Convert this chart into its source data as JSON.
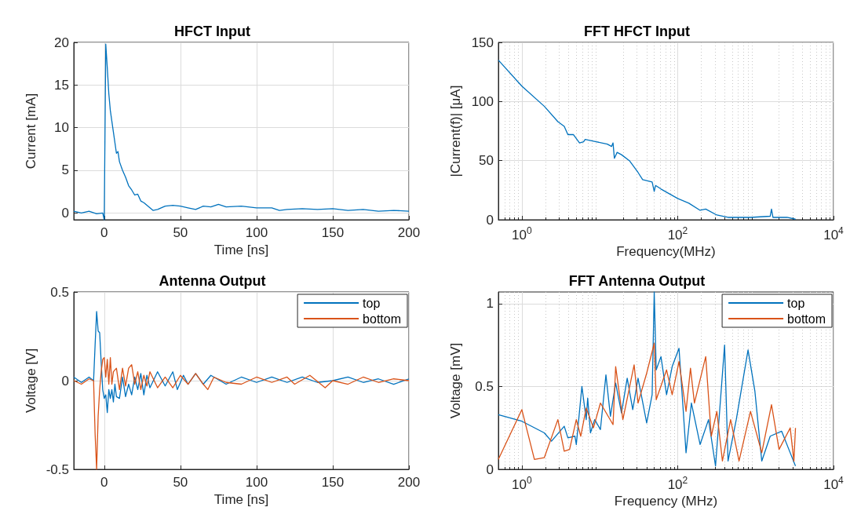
{
  "chart_data": [
    {
      "type": "line",
      "title": "HFCT Input",
      "xlabel": "Time [ns]",
      "ylabel": "Current [mA]",
      "xlim": [
        -20,
        200
      ],
      "xticks": [
        0,
        50,
        100,
        150,
        200
      ],
      "ylim": [
        -0.8,
        20
      ],
      "yticks": [
        0,
        5,
        10,
        15,
        20
      ],
      "grid": true,
      "legend": false,
      "series": [
        {
          "color": "#0072bd",
          "x": [
            -20,
            -15,
            -10,
            -5,
            -1,
            0,
            1,
            2,
            3,
            4,
            6,
            8,
            9,
            10,
            12,
            14,
            16,
            18,
            20,
            22,
            24,
            26,
            28,
            30,
            32,
            35,
            40,
            45,
            50,
            55,
            60,
            65,
            70,
            75,
            80,
            90,
            100,
            110,
            115,
            120,
            130,
            140,
            150,
            160,
            170,
            180,
            190,
            200
          ],
          "values": [
            0.2,
            0,
            0.2,
            -0.1,
            0,
            -0.8,
            19.8,
            17,
            14,
            12,
            9.5,
            7,
            7.2,
            6,
            5,
            4.2,
            3.2,
            2.7,
            2.1,
            2.2,
            1.4,
            1.2,
            0.9,
            0.6,
            0.3,
            0.4,
            0.8,
            0.9,
            0.8,
            0.6,
            0.4,
            0.8,
            0.7,
            1,
            0.7,
            0.8,
            0.6,
            0.6,
            0.3,
            0.4,
            0.5,
            0.4,
            0.5,
            0.3,
            0.4,
            0.2,
            0.3,
            0.2
          ]
        }
      ]
    },
    {
      "type": "line",
      "title": "FFT HFCT Input",
      "xlabel": "Frequency(MHz)",
      "ylabel": "|Current(f)| [μA]",
      "log": "x",
      "xlim": [
        0.5,
        10000
      ],
      "xticks": [
        {
          "value": 1,
          "label": "10$^{0}$"
        },
        {
          "value": 100,
          "label": "10$^{2}$"
        },
        {
          "value": 10000,
          "label": "10$^{4}$"
        }
      ],
      "ylim": [
        0,
        150
      ],
      "yticks": [
        0,
        50,
        100,
        150
      ],
      "grid": true,
      "legend": false,
      "series": [
        {
          "color": "#0072bd",
          "x": [
            0.5,
            1,
            1.94,
            2.9,
            3.5,
            3.9,
            4.6,
            5.5,
            6.2,
            6.5,
            9,
            12.5,
            14.2,
            14.8,
            15.4,
            16.7,
            19,
            24,
            31,
            35.5,
            47,
            50,
            52,
            61,
            78,
            100,
            139,
            194,
            229,
            318,
            443,
            860,
            1540,
            1600,
            1670,
            2530,
            3250
          ],
          "values": [
            135,
            113,
            96,
            83,
            79,
            72,
            72,
            65,
            66,
            68,
            66,
            64,
            62,
            65,
            52,
            57,
            55,
            50,
            40,
            34,
            32,
            24,
            29,
            26,
            22,
            18,
            14,
            8,
            9,
            4,
            2,
            2,
            3,
            9,
            2,
            2,
            0.5
          ]
        }
      ]
    },
    {
      "type": "line",
      "title": "Antenna Output",
      "xlabel": "Time [ns]",
      "ylabel": "Voltage [V]",
      "xlim": [
        -20,
        200
      ],
      "xticks": [
        0,
        50,
        100,
        150,
        200
      ],
      "ylim": [
        -0.5,
        0.5
      ],
      "yticks": [
        -0.5,
        0,
        0.5
      ],
      "grid": true,
      "legend": "top right",
      "series": [
        {
          "name": "top",
          "color": "#0072bd",
          "x": [
            -20,
            -15,
            -10,
            -7,
            -6,
            -5,
            -4,
            -3,
            -2,
            -1,
            0,
            1,
            2,
            3,
            4,
            5,
            6,
            7,
            8,
            10,
            12,
            14,
            16,
            18,
            20,
            22,
            24,
            26,
            28,
            30,
            35,
            40,
            45,
            48,
            52,
            55,
            60,
            65,
            70,
            80,
            90,
            100,
            110,
            120,
            130,
            140,
            150,
            160,
            170,
            180,
            190,
            200
          ],
          "values": [
            0.02,
            -0.01,
            0.02,
            0,
            0.2,
            0.39,
            0.28,
            0.27,
            0.1,
            -0.05,
            -0.1,
            -0.08,
            -0.18,
            -0.05,
            -0.1,
            -0.05,
            -0.12,
            -0.02,
            -0.09,
            -0.1,
            0.02,
            -0.09,
            -0.02,
            -0.08,
            0.02,
            -0.05,
            0.04,
            -0.08,
            0.03,
            -0.04,
            0.05,
            -0.03,
            0.05,
            -0.05,
            0.03,
            -0.02,
            0.04,
            -0.02,
            0.03,
            -0.02,
            0.02,
            -0.01,
            0.02,
            -0.01,
            0.02,
            -0.01,
            0,
            0.02,
            -0.01,
            0.01,
            -0.02,
            0.01
          ]
        },
        {
          "name": "bottom",
          "color": "#d95319",
          "x": [
            -20,
            -15,
            -10,
            -7,
            -6,
            -5,
            -4,
            -3,
            -2,
            -1,
            0,
            1,
            2,
            3,
            4,
            5,
            6,
            8,
            10,
            12,
            14,
            16,
            18,
            20,
            22,
            24,
            26,
            28,
            30,
            35,
            40,
            45,
            50,
            55,
            60,
            65,
            68,
            72,
            80,
            90,
            100,
            110,
            120,
            125,
            135,
            145,
            150,
            160,
            170,
            180,
            190,
            200
          ],
          "values": [
            0,
            -0.02,
            0.01,
            0,
            -0.3,
            -0.5,
            -0.2,
            -0.05,
            0.05,
            0.12,
            0.13,
            0.02,
            0.12,
            -0.02,
            0.13,
            -0.02,
            0.05,
            0.07,
            -0.05,
            0.07,
            -0.03,
            0.07,
            0.09,
            -0.02,
            0.05,
            -0.05,
            0.03,
            -0.03,
            0.05,
            -0.04,
            0.02,
            -0.04,
            0.03,
            -0.02,
            0.04,
            -0.02,
            -0.05,
            0.02,
            -0.01,
            -0.02,
            0.02,
            -0.01,
            0.02,
            -0.02,
            0.03,
            -0.04,
            0,
            -0.02,
            0.02,
            -0.01,
            0.01,
            0
          ]
        }
      ]
    },
    {
      "type": "line",
      "title": "FFT Antenna Output",
      "xlabel": "Frequency (MHz)",
      "ylabel": "Voltage [mV]",
      "log": "x",
      "xlim": [
        0.5,
        10000
      ],
      "xticks": [
        {
          "value": 1,
          "label": "10$^{0}$"
        },
        {
          "value": 100,
          "label": "10$^{2}$"
        },
        {
          "value": 10000,
          "label": "10$^{4}$"
        }
      ],
      "ylim": [
        0,
        1.07
      ],
      "yticks": [
        0,
        0.5,
        1
      ],
      "grid": true,
      "legend": "top right",
      "series": [
        {
          "name": "top",
          "color": "#0072bd",
          "x": [
            0.5,
            1,
            1.94,
            2.4,
            3.5,
            3.9,
            4.8,
            5,
            5.9,
            6.7,
            7,
            7.6,
            8.6,
            10.2,
            12,
            13.7,
            16,
            19,
            22.5,
            26.5,
            31,
            40,
            47,
            50,
            53,
            61,
            72,
            85,
            104,
            118,
            128,
            150,
            194,
            249,
            306,
            400,
            443,
            565,
            800,
            980,
            1200,
            1540,
            2160,
            2780,
            3250
          ],
          "values": [
            0.33,
            0.29,
            0.22,
            0.17,
            0.26,
            0.19,
            0.2,
            0.15,
            0.5,
            0.3,
            0.43,
            0.22,
            0.3,
            0.24,
            0.57,
            0.32,
            0.52,
            0.34,
            0.55,
            0.36,
            0.55,
            0.28,
            0.45,
            1.07,
            0.6,
            0.68,
            0.45,
            0.62,
            0.73,
            0.35,
            0.1,
            0.4,
            0.15,
            0.3,
            0.02,
            0.75,
            0.05,
            0.3,
            0.72,
            0.47,
            0.05,
            0.2,
            0.23,
            0.1,
            0.02
          ]
        },
        {
          "name": "bottom",
          "color": "#d95319",
          "x": [
            0.5,
            1,
            1.45,
            1.94,
            2.9,
            3.5,
            4.1,
            5,
            5.7,
            6.7,
            8.3,
            10.2,
            14.8,
            16,
            19.8,
            27.6,
            31,
            40,
            50,
            53,
            72,
            85,
            104,
            128,
            146,
            164,
            229,
            270,
            318,
            375,
            478,
            613,
            860,
            1200,
            1600,
            2000,
            2780,
            3100,
            3250
          ],
          "values": [
            0.06,
            0.36,
            0.06,
            0.07,
            0.3,
            0.11,
            0.12,
            0.3,
            0.2,
            0.37,
            0.25,
            0.4,
            0.27,
            0.62,
            0.3,
            0.63,
            0.4,
            0.58,
            0.76,
            0.42,
            0.6,
            0.45,
            0.65,
            0.35,
            0.61,
            0.4,
            0.68,
            0.2,
            0.35,
            0.05,
            0.3,
            0.05,
            0.35,
            0.1,
            0.39,
            0.12,
            0.25,
            0.05,
            0.25
          ]
        }
      ]
    }
  ]
}
